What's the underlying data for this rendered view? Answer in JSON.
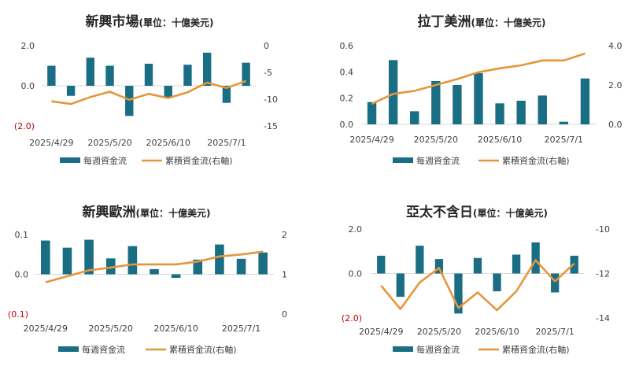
{
  "colors": {
    "bar": "#1a6e84",
    "line": "#e5963b",
    "negative_tick": "#c00000",
    "axis": "#d9d9d9",
    "text": "#404040"
  },
  "legend": {
    "bar_label": "每週資金流",
    "line_label": "累積資金流(右軸)"
  },
  "chart_data": [
    {
      "type": "bar+line",
      "title": "新興市場",
      "unit": "(單位：十億美元)",
      "x_tick_labels": [
        "2025/4/29",
        "2025/5/20",
        "2025/6/10",
        "2025/7/1"
      ],
      "y_left": {
        "range": [
          -2,
          2
        ],
        "ticks": [
          2,
          0,
          -2
        ],
        "tick_labels": [
          "2.0",
          "0.0",
          "(2.0)"
        ]
      },
      "y_right": {
        "range": [
          -15,
          0
        ],
        "ticks": [
          0,
          -5,
          -10,
          -15
        ],
        "tick_labels": [
          "0",
          "-5",
          "-10",
          "-15"
        ]
      },
      "weeks": 11,
      "bars": [
        1.0,
        -0.5,
        1.4,
        1.0,
        -1.5,
        1.1,
        -0.6,
        1.05,
        1.65,
        -0.85,
        1.15
      ],
      "line": [
        -10.4,
        -10.9,
        -9.6,
        -8.6,
        -10.1,
        -9.0,
        -9.8,
        -8.7,
        -6.9,
        -7.9,
        -6.6
      ]
    },
    {
      "type": "bar+line",
      "title": "拉丁美洲",
      "unit": "(單位：十億美元)",
      "x_tick_labels": [
        "2025/4/29",
        "2025/5/20",
        "2025/6/10",
        "2025/7/1"
      ],
      "y_left": {
        "range": [
          0,
          0.6
        ],
        "ticks": [
          0.6,
          0.4,
          0.2,
          0
        ],
        "tick_labels": [
          "0.6",
          "0.4",
          "0.2",
          "0.0"
        ]
      },
      "y_right": {
        "range": [
          0,
          4
        ],
        "ticks": [
          4,
          2,
          0
        ],
        "tick_labels": [
          "4.0",
          "2.0",
          "0.0"
        ]
      },
      "weeks": 11,
      "bars": [
        0.17,
        0.49,
        0.1,
        0.33,
        0.3,
        0.39,
        0.16,
        0.18,
        0.22,
        0.02,
        0.35
      ],
      "line": [
        1.05,
        1.55,
        1.7,
        2.0,
        2.3,
        2.65,
        2.85,
        3.0,
        3.25,
        3.25,
        3.6
      ]
    },
    {
      "type": "bar+line",
      "title": "新興歐洲",
      "unit": "(單位：十億美元)",
      "x_tick_labels": [
        "2025/4/29",
        "2025/5/20",
        "2025/6/10",
        "2025/7/1"
      ],
      "y_left": {
        "range": [
          -0.1,
          0.1
        ],
        "ticks": [
          0.1,
          0,
          -0.1
        ],
        "tick_labels": [
          "0.1",
          "0.0",
          "(0.1)"
        ]
      },
      "y_right": {
        "range": [
          0,
          2
        ],
        "ticks": [
          2,
          1,
          0
        ],
        "tick_labels": [
          "2",
          "1",
          "0"
        ]
      },
      "weeks": 11,
      "bars": [
        0.085,
        0.067,
        0.087,
        0.04,
        0.071,
        0.013,
        -0.009,
        0.037,
        0.075,
        0.039,
        0.055
      ],
      "line": [
        0.8,
        0.95,
        1.1,
        1.17,
        1.25,
        1.25,
        1.25,
        1.32,
        1.45,
        1.5,
        1.57
      ]
    },
    {
      "type": "bar+line",
      "title": "亞太不含日",
      "unit": "(單位：十億美元)",
      "x_tick_labels": [
        "2025/4/29",
        "2025/5/20",
        "2025/6/10",
        "2025/7/1"
      ],
      "y_left": {
        "range": [
          -2,
          2
        ],
        "ticks": [
          2,
          0,
          -2
        ],
        "tick_labels": [
          "2.0",
          "0.0",
          "(2.0)"
        ]
      },
      "y_right": {
        "range": [
          -14,
          -10
        ],
        "ticks": [
          -10,
          -12,
          -14
        ],
        "tick_labels": [
          "-10",
          "-12",
          "-14"
        ]
      },
      "weeks": 11,
      "bars": [
        0.8,
        -1.05,
        1.25,
        0.65,
        -1.8,
        0.7,
        -0.8,
        0.85,
        1.4,
        -0.85,
        0.8
      ],
      "line": [
        -12.55,
        -13.6,
        -12.4,
        -11.75,
        -13.55,
        -12.85,
        -13.65,
        -12.8,
        -11.4,
        -12.35,
        -11.55
      ]
    }
  ]
}
